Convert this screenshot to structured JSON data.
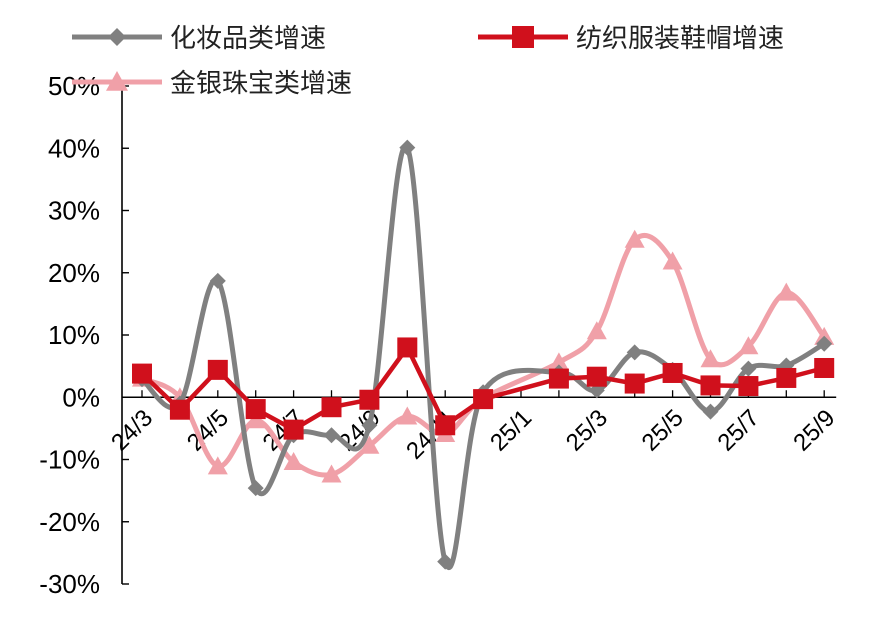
{
  "chart_data": {
    "type": "line",
    "categories": [
      "24/3",
      "24/4",
      "24/5",
      "24/6",
      "24/7",
      "24/8",
      "24/9",
      "24/10",
      "24/11",
      "24/12",
      "25/1",
      "25/2",
      "25/3",
      "25/4",
      "25/5",
      "25/6",
      "25/7",
      "25/8",
      "25/9"
    ],
    "x_tick_labels": [
      "24/3",
      "24/5",
      "24/7",
      "24/9",
      "24/11",
      "25/1",
      "25/3",
      "25/5",
      "25/7",
      "25/9"
    ],
    "ylim": [
      -30,
      50
    ],
    "y_ticks": [
      -30,
      -20,
      -10,
      0,
      10,
      20,
      30,
      40,
      50
    ],
    "y_tick_labels": [
      "-30%",
      "-20%",
      "-10%",
      "0%",
      "10%",
      "20%",
      "30%",
      "40%",
      "50%"
    ],
    "series": [
      {
        "name": "化妆品类增速",
        "color": "#808080",
        "marker": "diamond",
        "values": [
          2.9,
          -1.0,
          18.7,
          -14.6,
          -6.1,
          -6.1,
          -4.5,
          40.1,
          -26.4,
          0.8,
          null,
          4.0,
          1.1,
          7.2,
          4.4,
          -2.3,
          4.6,
          5.1,
          8.6
        ]
      },
      {
        "name": "纺织服装鞋帽增速",
        "color": "#d0101c",
        "marker": "square",
        "values": [
          3.8,
          -2.0,
          4.4,
          -1.9,
          -5.2,
          -1.6,
          -0.4,
          8.0,
          -4.5,
          -0.3,
          null,
          3.0,
          3.3,
          2.2,
          3.9,
          1.9,
          1.8,
          3.1,
          4.7
        ]
      },
      {
        "name": "金银珠宝类增速",
        "color": "#f0a0a8",
        "marker": "triangle",
        "values": [
          3.0,
          0.0,
          -11.1,
          -3.7,
          -10.4,
          -12.4,
          -7.8,
          -3.1,
          -5.9,
          -0.2,
          null,
          5.6,
          10.6,
          25.3,
          21.8,
          6.1,
          8.2,
          16.8,
          9.7
        ]
      }
    ],
    "legend_position": "top"
  }
}
